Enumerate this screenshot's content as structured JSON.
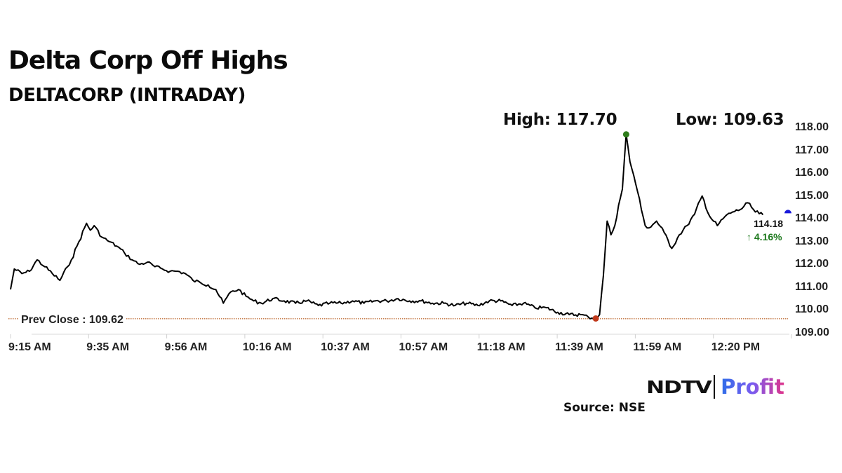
{
  "header": {
    "title": "Delta Corp Off Highs",
    "subtitle": "DELTACORP (INTRADAY)",
    "high_label": "High: 117.70",
    "low_label": "Low: 109.63"
  },
  "annotations": {
    "prev_close_label": "Prev Close : 109.62",
    "last_price": "114.18",
    "last_change": "↑ 4.16%"
  },
  "footer": {
    "brand_left": "NDTV",
    "brand_right": "Profit",
    "source": "Source: NSE"
  },
  "colors": {
    "line": "#000000",
    "high_marker": "#2e7d1a",
    "low_marker": "#c0391b",
    "last_marker": "#1a1adb",
    "prev_close_line": "#c0703a",
    "change_positive": "#1f7a1f"
  },
  "chart_data": {
    "type": "line",
    "title": "Delta Corp Off Highs",
    "subtitle": "DELTACORP (INTRADAY)",
    "xlabel": "",
    "ylabel": "",
    "ylim": [
      109.0,
      118.0
    ],
    "y_ticks": [
      "118.00",
      "117.00",
      "116.00",
      "115.00",
      "114.00",
      "113.00",
      "112.00",
      "111.00",
      "110.00",
      "109.00"
    ],
    "x_ticks": [
      "9:15 AM",
      "9:35 AM",
      "9:56 AM",
      "10:16 AM",
      "10:37 AM",
      "10:57 AM",
      "11:18 AM",
      "11:39 AM",
      "11:59 AM",
      "12:20 PM"
    ],
    "grid": false,
    "y_axis_position": "right",
    "reference_lines": [
      {
        "name": "Prev Close",
        "value": 109.62
      }
    ],
    "markers": {
      "high": {
        "time": "11:57 AM",
        "value": 117.7
      },
      "low": {
        "time": "11:49 AM",
        "value": 109.63
      },
      "last": {
        "time": "12:33 PM",
        "value": 114.18,
        "change_pct": 4.16
      }
    },
    "series": [
      {
        "name": "DELTACORP",
        "x": [
          "9:15",
          "9:16",
          "9:18",
          "9:20",
          "9:22",
          "9:24",
          "9:26",
          "9:28",
          "9:30",
          "9:31",
          "9:33",
          "9:35",
          "9:36",
          "9:37",
          "9:39",
          "9:41",
          "9:43",
          "9:45",
          "9:47",
          "9:49",
          "9:51",
          "9:53",
          "9:55",
          "9:57",
          "9:59",
          "10:01",
          "10:03",
          "10:05",
          "10:07",
          "10:09",
          "10:11",
          "10:13",
          "10:15",
          "10:17",
          "10:19",
          "10:21",
          "10:24",
          "10:27",
          "10:30",
          "10:33",
          "10:36",
          "10:39",
          "10:42",
          "10:45",
          "10:48",
          "10:51",
          "10:54",
          "10:57",
          "11:00",
          "11:03",
          "11:06",
          "11:09",
          "11:12",
          "11:15",
          "11:18",
          "11:21",
          "11:24",
          "11:27",
          "11:30",
          "11:33",
          "11:36",
          "11:39",
          "11:42",
          "11:45",
          "11:47",
          "11:49",
          "11:50",
          "11:51",
          "11:52",
          "11:53",
          "11:54",
          "11:55",
          "11:56",
          "11:57",
          "11:58",
          "11:59",
          "12:00",
          "12:01",
          "12:02",
          "12:03",
          "12:05",
          "12:07",
          "12:09",
          "12:11",
          "12:13",
          "12:15",
          "12:17",
          "12:19",
          "12:21",
          "12:23",
          "12:25",
          "12:27",
          "12:29",
          "12:31",
          "12:33"
        ],
        "values": [
          110.9,
          111.8,
          111.6,
          111.7,
          112.2,
          111.9,
          111.6,
          111.3,
          111.9,
          112.2,
          113.0,
          113.8,
          113.5,
          113.7,
          113.2,
          113.0,
          112.8,
          112.5,
          112.2,
          112.0,
          112.1,
          111.9,
          111.8,
          111.7,
          111.7,
          111.6,
          111.3,
          111.2,
          111.1,
          110.9,
          110.3,
          110.8,
          110.9,
          110.6,
          110.4,
          110.3,
          110.5,
          110.4,
          110.3,
          110.4,
          110.2,
          110.3,
          110.3,
          110.4,
          110.3,
          110.4,
          110.4,
          110.5,
          110.4,
          110.4,
          110.3,
          110.3,
          110.2,
          110.3,
          110.2,
          110.4,
          110.4,
          110.2,
          110.3,
          110.1,
          110.1,
          109.9,
          109.8,
          109.8,
          109.7,
          109.63,
          109.8,
          111.5,
          113.9,
          113.3,
          113.7,
          114.6,
          115.3,
          117.7,
          116.5,
          115.9,
          115.2,
          114.4,
          113.7,
          113.6,
          113.9,
          113.4,
          112.7,
          113.3,
          113.7,
          114.2,
          115.0,
          114.1,
          113.7,
          114.1,
          114.3,
          114.4,
          114.7,
          114.3,
          114.18
        ]
      }
    ]
  }
}
